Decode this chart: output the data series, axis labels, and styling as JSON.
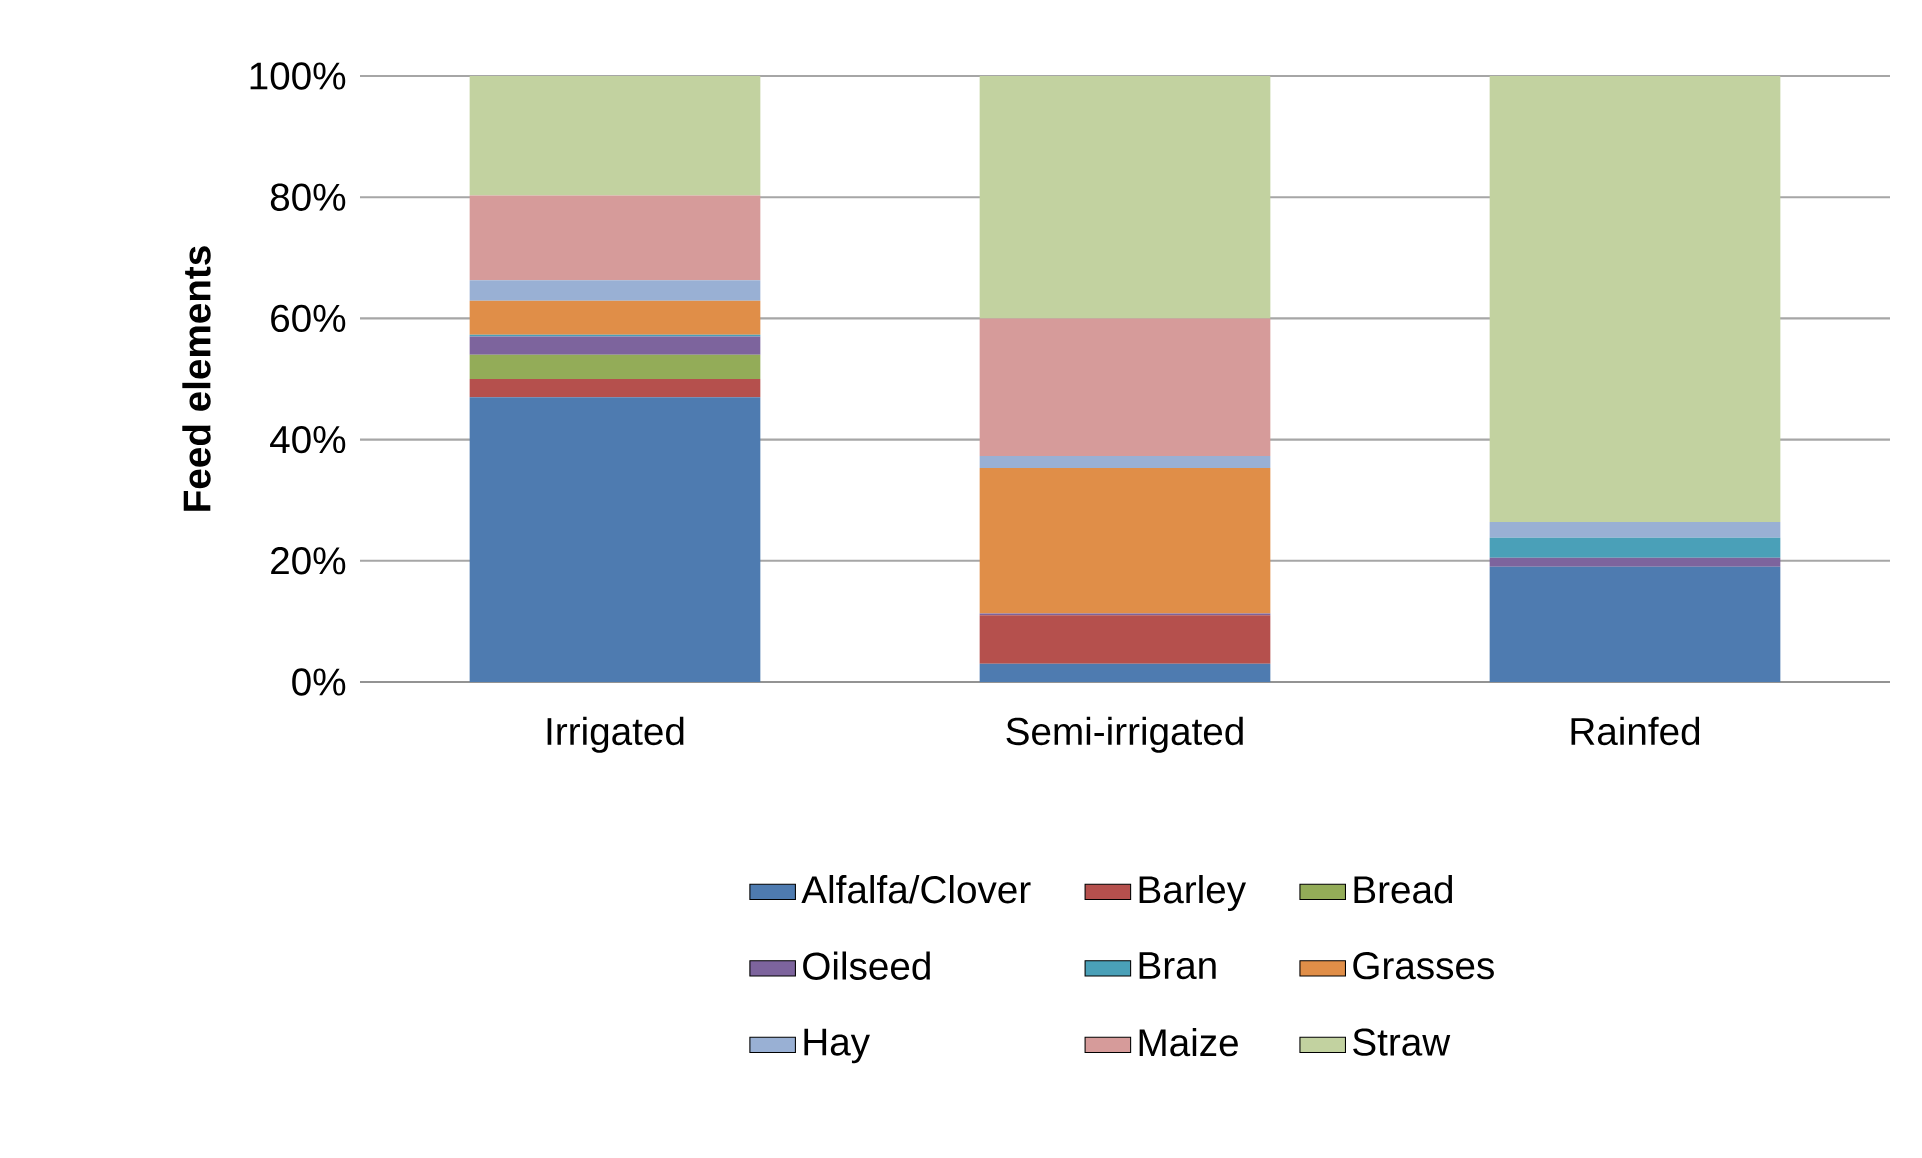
{
  "chart_data": {
    "type": "bar",
    "stacked": true,
    "ylabel": "Feed elements",
    "categories": [
      "Irrigated",
      "Semi-irrigated",
      "Rainfed"
    ],
    "series": [
      {
        "name": "Alfalfa/Clover",
        "color": "#4e7bb0",
        "values": [
          47,
          3,
          19
        ]
      },
      {
        "name": "Barley",
        "color": "#b5504d",
        "values": [
          3,
          8,
          0
        ]
      },
      {
        "name": "Bread",
        "color": "#93ac58",
        "values": [
          4,
          0,
          0
        ]
      },
      {
        "name": "Oilseed",
        "color": "#7d649d",
        "values": [
          3,
          0.3,
          1.5
        ]
      },
      {
        "name": "Bran",
        "color": "#4aa0b8",
        "values": [
          0.3,
          0,
          3.3
        ]
      },
      {
        "name": "Grasses",
        "color": "#e08e48",
        "values": [
          5.6,
          24,
          0
        ]
      },
      {
        "name": "Hay",
        "color": "#99b0d4",
        "values": [
          3.4,
          2,
          2.6
        ]
      },
      {
        "name": "Maize",
        "color": "#d69b9a",
        "values": [
          14,
          22.7,
          0
        ]
      },
      {
        "name": "Straw",
        "color": "#c2d2a0",
        "values": [
          19.7,
          40,
          73.6
        ]
      }
    ],
    "ylim": [
      0,
      100
    ],
    "yticks": [
      {
        "value": 0,
        "label": "0%"
      },
      {
        "value": 20,
        "label": "20%"
      },
      {
        "value": 40,
        "label": "40%"
      },
      {
        "value": 60,
        "label": "60%"
      },
      {
        "value": 80,
        "label": "80%"
      },
      {
        "value": 100,
        "label": "100%"
      }
    ],
    "grid": "y",
    "legend": "bottom"
  }
}
